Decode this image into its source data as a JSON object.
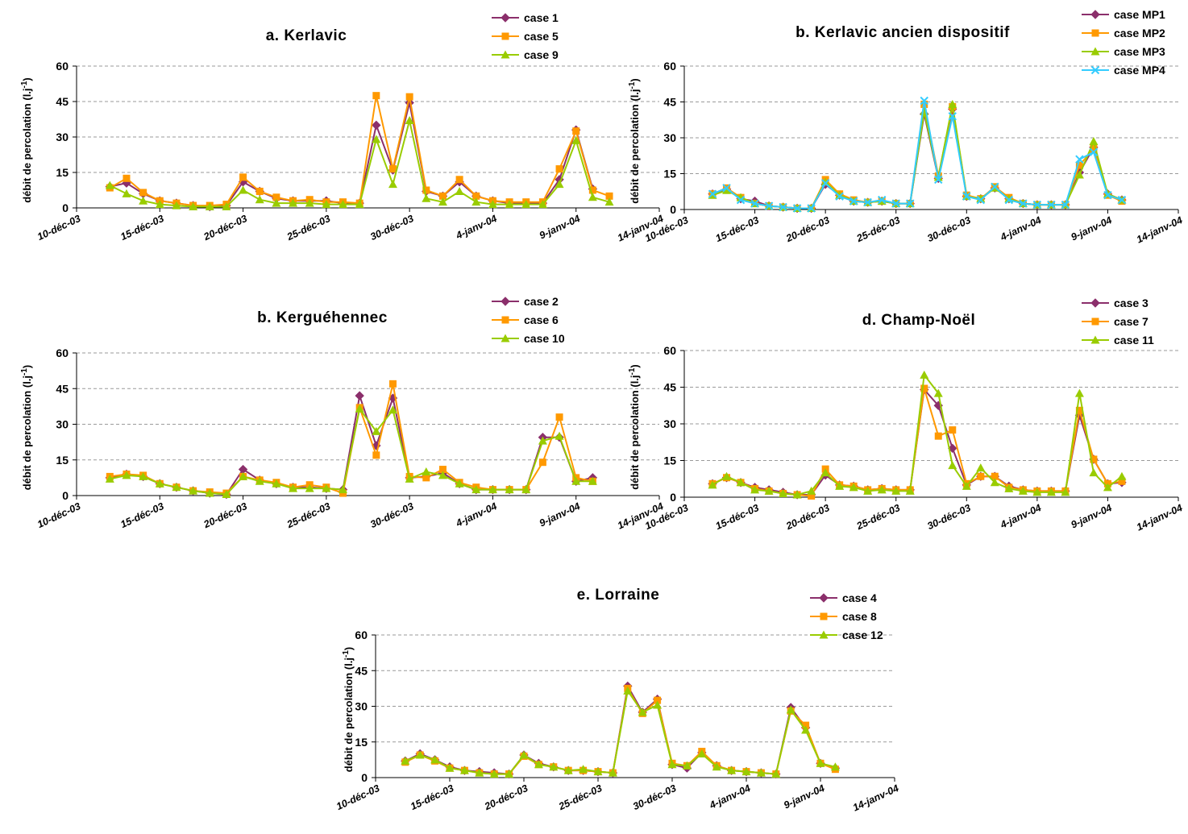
{
  "chart_data": [
    {
      "type": "line",
      "title": "a. Kerlavic",
      "ylabel": "débit de percolation (l.j-1)",
      "ylim": [
        0,
        60
      ],
      "yticks": [
        0,
        15,
        30,
        45,
        60
      ],
      "xticks": [
        "10-déc-03",
        "15-déc-03",
        "20-déc-03",
        "25-déc-03",
        "30-déc-03",
        "4-janv-04",
        "9-janv-04",
        "14-janv-04"
      ],
      "x": [
        "12-déc-03",
        "13-déc-03",
        "14-déc-03",
        "15-déc-03",
        "16-déc-03",
        "17-déc-03",
        "18-déc-03",
        "19-déc-03",
        "20-déc-03",
        "21-déc-03",
        "22-déc-03",
        "23-déc-03",
        "24-déc-03",
        "25-déc-03",
        "26-déc-03",
        "27-déc-03",
        "28-déc-03",
        "29-déc-03",
        "30-déc-03",
        "31-déc-03",
        "1-janv-04",
        "2-janv-04",
        "3-janv-04",
        "4-janv-04",
        "5-janv-04",
        "6-janv-04",
        "7-janv-04",
        "8-janv-04",
        "9-janv-04",
        "10-janv-04",
        "11-janv-04"
      ],
      "legend": "top-right",
      "grid": true,
      "series": [
        {
          "name": "case 1",
          "color": "#8B2F6B",
          "marker": "diamond",
          "values": [
            9,
            10.5,
            6,
            3,
            2,
            1,
            0.5,
            1,
            11,
            7,
            4,
            3,
            3,
            3,
            2,
            2,
            35,
            16,
            44.5,
            7,
            5,
            11,
            5,
            3,
            2,
            2,
            2,
            12,
            33,
            8,
            null
          ]
        },
        {
          "name": "case 5",
          "color": "#FF9900",
          "marker": "square",
          "values": [
            8.5,
            12.5,
            6.5,
            3,
            2,
            1,
            1,
            1.5,
            13,
            7,
            4.5,
            3,
            3.5,
            2.5,
            2.5,
            2,
            47.5,
            16.5,
            47,
            7.5,
            5,
            12,
            5,
            3,
            2.5,
            2.5,
            2.5,
            16.5,
            32.5,
            7.5,
            5
          ]
        },
        {
          "name": "case 9",
          "color": "#99CC00",
          "marker": "triangle",
          "values": [
            9.5,
            6,
            3,
            1.5,
            1,
            0.5,
            0.5,
            0.5,
            7.5,
            3.5,
            2,
            2,
            2,
            1.5,
            1.5,
            1.5,
            29,
            10,
            37,
            4,
            2.5,
            7,
            2.5,
            1.5,
            1.5,
            1.5,
            1.5,
            10,
            28.5,
            4.5,
            2.5
          ]
        }
      ]
    },
    {
      "type": "line",
      "title": "b. Kerlavic ancien dispositif",
      "ylabel": "débit de percolation (l.j-1)",
      "ylim": [
        0,
        60
      ],
      "yticks": [
        0,
        15,
        30,
        45,
        60
      ],
      "xticks": [
        "10-déc-03",
        "15-déc-03",
        "20-déc-03",
        "25-déc-03",
        "30-déc-03",
        "4-janv-04",
        "9-janv-04",
        "14-janv-04"
      ],
      "x": [
        "12-déc-03",
        "13-déc-03",
        "14-déc-03",
        "15-déc-03",
        "16-déc-03",
        "17-déc-03",
        "18-déc-03",
        "19-déc-03",
        "20-déc-03",
        "21-déc-03",
        "22-déc-03",
        "23-déc-03",
        "24-déc-03",
        "25-déc-03",
        "26-déc-03",
        "27-déc-03",
        "28-déc-03",
        "29-déc-03",
        "30-déc-03",
        "31-déc-03",
        "1-janv-04",
        "2-janv-04",
        "3-janv-04",
        "4-janv-04",
        "5-janv-04",
        "6-janv-04",
        "7-janv-04",
        "8-janv-04",
        "9-janv-04",
        "10-janv-04",
        "11-janv-04"
      ],
      "legend": "top-right",
      "grid": true,
      "series": [
        {
          "name": "case MP1",
          "color": "#8B2F6B",
          "marker": "diamond",
          "values": [
            6.5,
            8.5,
            4.5,
            3.5,
            1.5,
            1,
            0.5,
            0.5,
            10.5,
            6,
            3.5,
            3,
            3.5,
            2.5,
            2.5,
            40,
            13,
            42,
            5.5,
            4.5,
            9,
            4.5,
            2.5,
            2,
            2,
            2,
            15.5,
            26,
            6.5,
            4,
            null
          ]
        },
        {
          "name": "case MP2",
          "color": "#FF9900",
          "marker": "square",
          "values": [
            6.5,
            9,
            5,
            2.5,
            1.5,
            1,
            0.5,
            0.5,
            12.5,
            6.5,
            4,
            3,
            3.5,
            2.5,
            2.5,
            44,
            14,
            43,
            6,
            4.5,
            9.5,
            5,
            2.5,
            2,
            2,
            2,
            18.5,
            25.5,
            6,
            3.5,
            null
          ]
        },
        {
          "name": "case MP3",
          "color": "#99CC00",
          "marker": "triangle",
          "values": [
            6,
            8,
            5,
            2.5,
            1.5,
            1,
            0.5,
            0.5,
            11.5,
            6,
            3.5,
            3,
            3.5,
            2.5,
            2.5,
            41,
            13.5,
            44,
            5.5,
            4.5,
            9,
            4.5,
            2.5,
            2,
            2,
            2,
            14.5,
            28.5,
            6.5,
            4,
            null
          ]
        },
        {
          "name": "case MP4",
          "color": "#33CCFF",
          "marker": "x",
          "values": [
            6.5,
            9,
            4,
            2.5,
            1.5,
            1,
            0.5,
            0.5,
            11,
            5.5,
            3.5,
            3,
            4,
            2.5,
            2.5,
            45.5,
            12.5,
            39,
            5.5,
            4,
            9.5,
            4,
            2.5,
            2,
            2,
            2,
            21,
            24,
            6,
            4,
            null
          ]
        }
      ]
    },
    {
      "type": "line",
      "title": "b. Kerguéhennec",
      "ylabel": "débit de percolation (l.j-1)",
      "ylim": [
        0,
        60
      ],
      "yticks": [
        0,
        15,
        30,
        45,
        60
      ],
      "xticks": [
        "10-déc-03",
        "15-déc-03",
        "20-déc-03",
        "25-déc-03",
        "30-déc-03",
        "4-janv-04",
        "9-janv-04",
        "14-janv-04"
      ],
      "x": [
        "12-déc-03",
        "13-déc-03",
        "14-déc-03",
        "15-déc-03",
        "16-déc-03",
        "17-déc-03",
        "18-déc-03",
        "19-déc-03",
        "20-déc-03",
        "21-déc-03",
        "22-déc-03",
        "23-déc-03",
        "24-déc-03",
        "25-déc-03",
        "26-déc-03",
        "27-déc-03",
        "28-déc-03",
        "29-déc-03",
        "30-déc-03",
        "31-déc-03",
        "1-janv-04",
        "2-janv-04",
        "3-janv-04",
        "4-janv-04",
        "5-janv-04",
        "6-janv-04",
        "7-janv-04",
        "8-janv-04",
        "9-janv-04",
        "10-janv-04",
        "11-janv-04"
      ],
      "legend": "top-right",
      "grid": true,
      "series": [
        {
          "name": "case 2",
          "color": "#8B2F6B",
          "marker": "diamond",
          "values": [
            7.5,
            9,
            8,
            5,
            3.5,
            2,
            1,
            0.5,
            11,
            6.5,
            5,
            3.5,
            3.5,
            3,
            2.5,
            42,
            21,
            41,
            7.5,
            8,
            9.5,
            5,
            2.5,
            2.5,
            2.5,
            2.5,
            24.5,
            24.5,
            6,
            7.5,
            null
          ]
        },
        {
          "name": "case 6",
          "color": "#FF9900",
          "marker": "square",
          "values": [
            8,
            9,
            8.5,
            5,
            3.5,
            2,
            1.5,
            1,
            8,
            6.5,
            5.5,
            3.5,
            4.5,
            3.5,
            1,
            37,
            17,
            47,
            8,
            7.5,
            11,
            5.5,
            3.5,
            2.5,
            2.5,
            2.5,
            14,
            33,
            7.5,
            6,
            null
          ]
        },
        {
          "name": "case 10",
          "color": "#99CC00",
          "marker": "triangle",
          "values": [
            7,
            8.5,
            8,
            5,
            3.5,
            2,
            1,
            0.5,
            8,
            6,
            5,
            3,
            3,
            3,
            2.5,
            36.5,
            27,
            36,
            7,
            10,
            8.5,
            5,
            2.5,
            2.5,
            2.5,
            2.5,
            23,
            25,
            6,
            6,
            null
          ]
        }
      ]
    },
    {
      "type": "line",
      "title": "d. Champ-Noël",
      "ylabel": "débit de percolation (l.j-1)",
      "ylim": [
        0,
        60
      ],
      "yticks": [
        0,
        15,
        30,
        45,
        60
      ],
      "xticks": [
        "10-déc-03",
        "15-déc-03",
        "20-déc-03",
        "25-déc-03",
        "30-déc-03",
        "4-janv-04",
        "9-janv-04",
        "14-janv-04"
      ],
      "x": [
        "12-déc-03",
        "13-déc-03",
        "14-déc-03",
        "15-déc-03",
        "16-déc-03",
        "17-déc-03",
        "18-déc-03",
        "19-déc-03",
        "20-déc-03",
        "21-déc-03",
        "22-déc-03",
        "23-déc-03",
        "24-déc-03",
        "25-déc-03",
        "26-déc-03",
        "27-déc-03",
        "28-déc-03",
        "29-déc-03",
        "30-déc-03",
        "31-déc-03",
        "1-janv-04",
        "2-janv-04",
        "3-janv-04",
        "4-janv-04",
        "5-janv-04",
        "6-janv-04",
        "7-janv-04",
        "8-janv-04",
        "9-janv-04",
        "10-janv-04",
        "11-janv-04"
      ],
      "legend": "top-right",
      "grid": true,
      "series": [
        {
          "name": "case 3",
          "color": "#8B2F6B",
          "marker": "diamond",
          "values": [
            5.5,
            8,
            6,
            4,
            3,
            2,
            1,
            1,
            9,
            5,
            4.5,
            3,
            3.5,
            3,
            3,
            44,
            37.5,
            20,
            5,
            8.5,
            8.5,
            4.5,
            3,
            2.5,
            2.5,
            2.5,
            33.5,
            15.5,
            5.5,
            6,
            null
          ]
        },
        {
          "name": "case 7",
          "color": "#FF9900",
          "marker": "square",
          "values": [
            5.5,
            8,
            6,
            3.5,
            2.5,
            1.5,
            1,
            0.5,
            11.5,
            5,
            4.5,
            3,
            3.5,
            3,
            3,
            44.5,
            25,
            27.5,
            5.5,
            8.5,
            8.5,
            4,
            3,
            2.5,
            2.5,
            2.5,
            35.5,
            15.5,
            5.5,
            6.5,
            null
          ]
        },
        {
          "name": "case 11",
          "color": "#99CC00",
          "marker": "triangle",
          "values": [
            5,
            8.5,
            6,
            3,
            2.5,
            1.5,
            1,
            2.5,
            10,
            4.5,
            4,
            2.5,
            3,
            2.5,
            2.5,
            50,
            42.5,
            13,
            4.5,
            12,
            6,
            3.5,
            2.5,
            2,
            2,
            2,
            42.5,
            10,
            4,
            8.5,
            null
          ]
        }
      ]
    },
    {
      "type": "line",
      "title": "e. Lorraine",
      "ylabel": "débit de percolation (l.j-1)",
      "ylim": [
        0,
        60
      ],
      "yticks": [
        0,
        15,
        30,
        45,
        60
      ],
      "xticks": [
        "10-déc-03",
        "15-déc-03",
        "20-déc-03",
        "25-déc-03",
        "30-déc-03",
        "4-janv-04",
        "9-janv-04",
        "14-janv-04"
      ],
      "x": [
        "12-déc-03",
        "13-déc-03",
        "14-déc-03",
        "15-déc-03",
        "16-déc-03",
        "17-déc-03",
        "18-déc-03",
        "19-déc-03",
        "20-déc-03",
        "21-déc-03",
        "22-déc-03",
        "23-déc-03",
        "24-déc-03",
        "25-déc-03",
        "26-déc-03",
        "27-déc-03",
        "28-déc-03",
        "29-déc-03",
        "30-déc-03",
        "31-déc-03",
        "1-janv-04",
        "2-janv-04",
        "3-janv-04",
        "4-janv-04",
        "5-janv-04",
        "6-janv-04",
        "7-janv-04",
        "8-janv-04",
        "9-janv-04",
        "10-janv-04",
        "11-janv-04"
      ],
      "legend": "top-right",
      "grid": true,
      "series": [
        {
          "name": "case 4",
          "color": "#8B2F6B",
          "marker": "diamond",
          "values": [
            7,
            10,
            7.5,
            4.5,
            3,
            2.5,
            2,
            1.5,
            9.5,
            6,
            4.5,
            3,
            3,
            2.5,
            2,
            38.5,
            27.5,
            33,
            5.5,
            4,
            10.5,
            5,
            3,
            2.5,
            2,
            1.5,
            29.5,
            21,
            6,
            4,
            null
          ]
        },
        {
          "name": "case 8",
          "color": "#FF9900",
          "marker": "square",
          "values": [
            6.5,
            9.5,
            7,
            4,
            3,
            2,
            1.5,
            1.5,
            9,
            5.5,
            4.5,
            3,
            3,
            2.5,
            2,
            37.5,
            27,
            32.5,
            6,
            5,
            11,
            5,
            3,
            2.5,
            2,
            1.5,
            28,
            22,
            6,
            3.5,
            null
          ]
        },
        {
          "name": "case 12",
          "color": "#99CC00",
          "marker": "triangle",
          "values": [
            7,
            9.5,
            7.5,
            4,
            3,
            2,
            1.5,
            1.5,
            9.5,
            5.5,
            4.5,
            3,
            3.5,
            2.5,
            2,
            36.5,
            27.5,
            30.5,
            5.5,
            5,
            10,
            4.5,
            3,
            2.5,
            2,
            1.5,
            28.5,
            20,
            6,
            4.5,
            null
          ]
        }
      ]
    }
  ]
}
